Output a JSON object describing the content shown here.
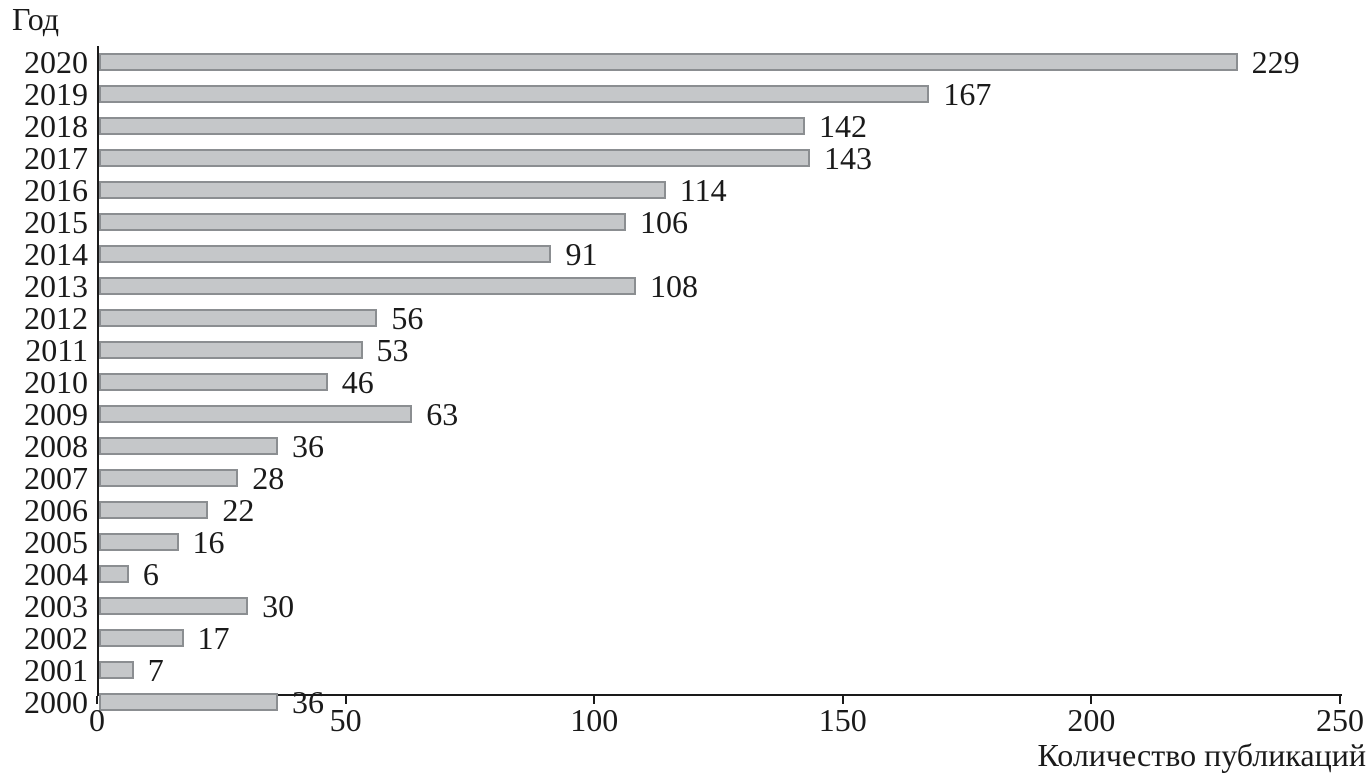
{
  "chart_data": {
    "type": "bar",
    "orientation": "horizontal",
    "title": "",
    "ylabel": "Год",
    "xlabel": "Количество публикаций",
    "categories": [
      "2020",
      "2019",
      "2018",
      "2017",
      "2016",
      "2015",
      "2014",
      "2013",
      "2012",
      "2011",
      "2010",
      "2009",
      "2008",
      "2007",
      "2006",
      "2005",
      "2004",
      "2003",
      "2002",
      "2001",
      "2000"
    ],
    "values": [
      229,
      167,
      142,
      143,
      114,
      106,
      91,
      108,
      56,
      53,
      46,
      63,
      36,
      28,
      22,
      16,
      6,
      30,
      17,
      7,
      36
    ],
    "xlim": [
      0,
      250
    ],
    "xticks": [
      0,
      50,
      100,
      150,
      200,
      250
    ],
    "grid": "off",
    "legend": "none",
    "bar_fill_color": "#c5c7c9",
    "bar_border_color": "#8b8e91",
    "axis_color": "#1a1a1a"
  }
}
